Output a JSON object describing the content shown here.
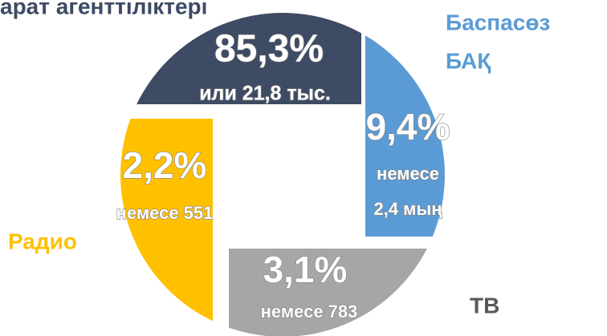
{
  "chart_data": {
    "type": "pie",
    "labels": [
      [
        "арат агенттіліктері"
      ],
      [
        "Баспасөз",
        "БАҚ"
      ],
      [
        "ТВ"
      ],
      [
        "Радио"
      ]
    ],
    "values": [
      85.3,
      9.4,
      3.1,
      2.2
    ],
    "value_labels": [
      "85,3%",
      "9,4%",
      "3,1%",
      "2,2%"
    ],
    "sublabels": [
      [
        "или 21,8 тыс."
      ],
      [
        "немесе",
        "2,4 мың"
      ],
      [
        "немесе 783"
      ],
      [
        "немесе 551"
      ]
    ],
    "colors": [
      "#3e4b64",
      "#5b9bd5",
      "#a6a6a6",
      "#ffc000"
    ],
    "label_colors": [
      "#3e4b64",
      "#5b9bd5",
      "#595959",
      "#ffc000"
    ]
  }
}
